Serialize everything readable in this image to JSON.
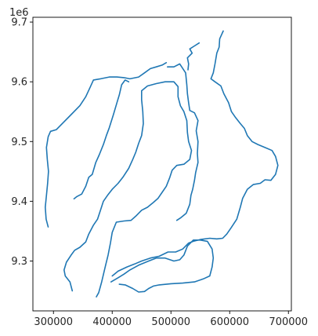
{
  "chart_data": {
    "type": "line",
    "title": "",
    "xlabel": "",
    "ylabel": "",
    "y_offset_label": "1e6",
    "xlim": [
      265000,
      705000
    ],
    "ylim": [
      9.2165,
      9.708
    ],
    "xticks": [
      300000,
      400000,
      500000,
      600000,
      700000
    ],
    "xtick_labels": [
      "300000",
      "400000",
      "500000",
      "600000",
      "700000"
    ],
    "yticks": [
      9.3,
      9.4,
      9.5,
      9.6,
      9.7
    ],
    "ytick_labels": [
      "9.3",
      "9.4",
      "9.5",
      "9.6",
      "9.7"
    ],
    "grid": false,
    "legend": false,
    "line_color": "#1f77b4",
    "series": [
      {
        "points": [
          [
            291000,
            9.357
          ],
          [
            287500,
            9.37
          ],
          [
            286000,
            9.39
          ],
          [
            288000,
            9.41
          ],
          [
            290000,
            9.43
          ],
          [
            291500,
            9.45
          ],
          [
            289500,
            9.47
          ],
          [
            288000,
            9.49
          ],
          [
            291000,
            9.508
          ],
          [
            295000,
            9.517
          ],
          [
            305000,
            9.52
          ],
          [
            315000,
            9.53
          ],
          [
            330000,
            9.545
          ],
          [
            345000,
            9.56
          ],
          [
            355000,
            9.575
          ],
          [
            362000,
            9.59
          ],
          [
            368000,
            9.603
          ],
          [
            380000,
            9.605
          ],
          [
            395000,
            9.608
          ],
          [
            408000,
            9.608
          ],
          [
            420000,
            9.607
          ],
          [
            430000,
            9.605
          ],
          [
            445000,
            9.608
          ],
          [
            455000,
            9.615
          ],
          [
            465000,
            9.622
          ],
          [
            475000,
            9.625
          ],
          [
            485000,
            9.628
          ],
          [
            492000,
            9.632
          ]
        ]
      },
      {
        "points": [
          [
            335000,
            9.404
          ],
          [
            340000,
            9.408
          ],
          [
            348000,
            9.412
          ],
          [
            355000,
            9.425
          ],
          [
            360000,
            9.44
          ],
          [
            366000,
            9.445
          ],
          [
            372000,
            9.465
          ],
          [
            378000,
            9.478
          ],
          [
            385000,
            9.495
          ],
          [
            390000,
            9.51
          ],
          [
            395000,
            9.523
          ],
          [
            402000,
            9.545
          ],
          [
            408000,
            9.565
          ],
          [
            412000,
            9.578
          ],
          [
            416000,
            9.595
          ],
          [
            422000,
            9.603
          ],
          [
            428000,
            9.6
          ]
        ]
      },
      {
        "points": [
          [
            332000,
            9.25
          ],
          [
            328000,
            9.265
          ],
          [
            320000,
            9.275
          ],
          [
            318000,
            9.285
          ],
          [
            322000,
            9.298
          ],
          [
            330000,
            9.31
          ],
          [
            336000,
            9.318
          ],
          [
            345000,
            9.323
          ],
          [
            355000,
            9.332
          ],
          [
            360000,
            9.345
          ],
          [
            368000,
            9.36
          ],
          [
            375000,
            9.37
          ],
          [
            380000,
            9.385
          ],
          [
            385000,
            9.4
          ],
          [
            392000,
            9.41
          ],
          [
            400000,
            9.42
          ],
          [
            410000,
            9.43
          ],
          [
            418000,
            9.44
          ],
          [
            428000,
            9.455
          ],
          [
            435000,
            9.47
          ],
          [
            440000,
            9.482
          ],
          [
            445000,
            9.497
          ],
          [
            450000,
            9.51
          ],
          [
            453000,
            9.53
          ],
          [
            452000,
            9.55
          ],
          [
            450000,
            9.57
          ],
          [
            450000,
            9.585
          ],
          [
            460000,
            9.593
          ],
          [
            475000,
            9.597
          ],
          [
            490000,
            9.6
          ],
          [
            505000,
            9.6
          ],
          [
            512000,
            9.592
          ],
          [
            512000,
            9.575
          ],
          [
            516000,
            9.56
          ],
          [
            522000,
            9.55
          ],
          [
            527000,
            9.535
          ],
          [
            528000,
            9.515
          ],
          [
            530000,
            9.5
          ],
          [
            535000,
            9.485
          ],
          [
            532000,
            9.47
          ],
          [
            522000,
            9.462
          ],
          [
            510000,
            9.46
          ],
          [
            502000,
            9.452
          ],
          [
            498000,
            9.44
          ],
          [
            492000,
            9.425
          ],
          [
            485000,
            9.415
          ],
          [
            478000,
            9.405
          ],
          [
            470000,
            9.398
          ],
          [
            460000,
            9.39
          ],
          [
            450000,
            9.385
          ],
          [
            440000,
            9.375
          ],
          [
            432000,
            9.368
          ],
          [
            420000,
            9.367
          ],
          [
            407000,
            9.365
          ],
          [
            400000,
            9.348
          ],
          [
            397000,
            9.33
          ],
          [
            393000,
            9.31
          ],
          [
            388000,
            9.29
          ],
          [
            382000,
            9.265
          ],
          [
            377000,
            9.247
          ],
          [
            373000,
            9.24
          ]
        ]
      },
      {
        "points": [
          [
            398000,
            9.265
          ],
          [
            410000,
            9.272
          ],
          [
            420000,
            9.278
          ],
          [
            430000,
            9.285
          ],
          [
            445000,
            9.293
          ],
          [
            462000,
            9.3
          ],
          [
            475000,
            9.305
          ],
          [
            490000,
            9.305
          ],
          [
            505000,
            9.3
          ],
          [
            515000,
            9.302
          ],
          [
            522000,
            9.31
          ],
          [
            528000,
            9.325
          ],
          [
            538000,
            9.335
          ],
          [
            550000,
            9.335
          ],
          [
            562000,
            9.333
          ],
          [
            570000,
            9.32
          ],
          [
            572000,
            9.305
          ],
          [
            570000,
            9.29
          ],
          [
            566000,
            9.275
          ],
          [
            555000,
            9.27
          ],
          [
            540000,
            9.265
          ],
          [
            520000,
            9.263
          ],
          [
            500000,
            9.262
          ],
          [
            480000,
            9.26
          ],
          [
            470000,
            9.258
          ],
          [
            462000,
            9.254
          ],
          [
            455000,
            9.249
          ],
          [
            445000,
            9.248
          ],
          [
            435000,
            9.254
          ],
          [
            422000,
            9.26
          ],
          [
            412000,
            9.261
          ]
        ]
      },
      {
        "points": [
          [
            494000,
            9.625
          ],
          [
            505000,
            9.625
          ],
          [
            515000,
            9.63
          ],
          [
            525000,
            9.615
          ],
          [
            527000,
            9.595
          ],
          [
            528000,
            9.58
          ],
          [
            530000,
            9.565
          ],
          [
            532000,
            9.552
          ],
          [
            540000,
            9.548
          ],
          [
            546000,
            9.535
          ],
          [
            543000,
            9.518
          ],
          [
            546000,
            9.5
          ],
          [
            545000,
            9.48
          ],
          [
            546000,
            9.465
          ],
          [
            542000,
            9.448
          ],
          [
            540000,
            9.435
          ],
          [
            537000,
            9.42
          ],
          [
            534000,
            9.41
          ],
          [
            532000,
            9.395
          ],
          [
            526000,
            9.38
          ],
          [
            516000,
            9.372
          ],
          [
            510000,
            9.368
          ]
        ]
      },
      {
        "points": [
          [
            529000,
            9.62
          ],
          [
            530000,
            9.63
          ],
          [
            528000,
            9.64
          ],
          [
            536000,
            9.648
          ],
          [
            532000,
            9.655
          ],
          [
            540000,
            9.66
          ],
          [
            548000,
            9.665
          ]
        ]
      },
      {
        "points": [
          [
            589000,
            9.685
          ],
          [
            583000,
            9.672
          ],
          [
            582000,
            9.658
          ],
          [
            578000,
            9.648
          ],
          [
            575000,
            9.63
          ],
          [
            572000,
            9.615
          ],
          [
            568000,
            9.605
          ],
          [
            575000,
            9.6
          ],
          [
            585000,
            9.593
          ],
          [
            590000,
            9.58
          ],
          [
            598000,
            9.565
          ],
          [
            603000,
            9.55
          ],
          [
            610000,
            9.54
          ],
          [
            618000,
            9.53
          ],
          [
            625000,
            9.522
          ],
          [
            630000,
            9.51
          ],
          [
            638000,
            9.5
          ],
          [
            648000,
            9.495
          ],
          [
            660000,
            9.49
          ],
          [
            672000,
            9.485
          ],
          [
            678000,
            9.475
          ],
          [
            682000,
            9.46
          ],
          [
            678000,
            9.445
          ],
          [
            670000,
            9.435
          ],
          [
            660000,
            9.436
          ],
          [
            652000,
            9.43
          ],
          [
            640000,
            9.428
          ],
          [
            630000,
            9.42
          ],
          [
            622000,
            9.405
          ],
          [
            618000,
            9.39
          ],
          [
            612000,
            9.37
          ],
          [
            602000,
            9.355
          ],
          [
            595000,
            9.345
          ],
          [
            588000,
            9.338
          ],
          [
            578000,
            9.337
          ],
          [
            566000,
            9.338
          ],
          [
            550000,
            9.336
          ],
          [
            538000,
            9.333
          ],
          [
            530000,
            9.33
          ],
          [
            520000,
            9.32
          ],
          [
            508000,
            9.315
          ],
          [
            495000,
            9.315
          ],
          [
            480000,
            9.308
          ],
          [
            465000,
            9.305
          ],
          [
            450000,
            9.3
          ],
          [
            438000,
            9.295
          ],
          [
            425000,
            9.29
          ],
          [
            410000,
            9.283
          ],
          [
            400000,
            9.275
          ]
        ]
      }
    ]
  }
}
